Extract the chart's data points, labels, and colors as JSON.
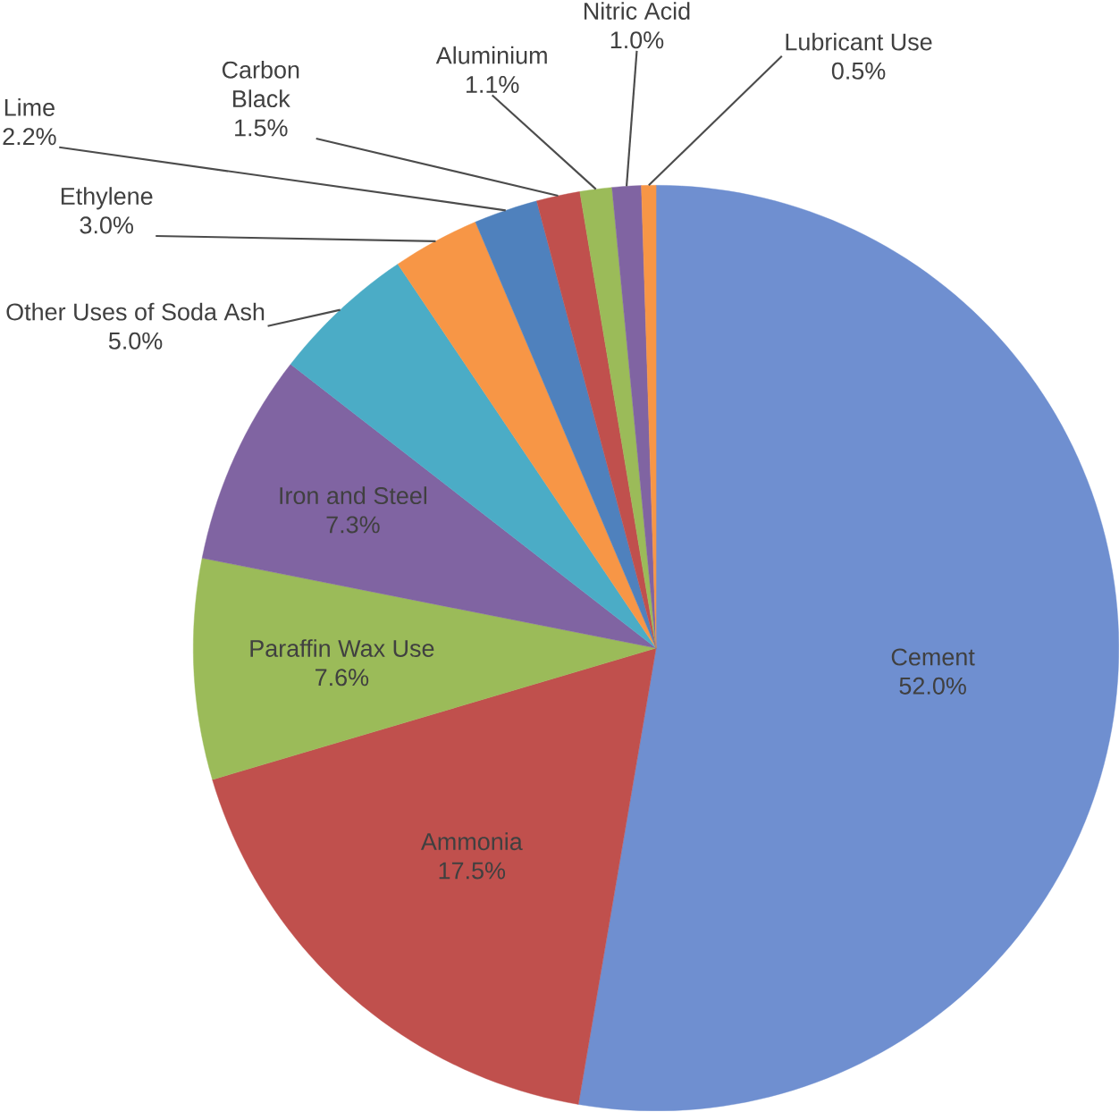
{
  "chart_data": {
    "type": "pie",
    "categories": [
      "Cement",
      "Ammonia",
      "Paraffin Wax Use",
      "Iron and Steel",
      "Other Uses of Soda Ash",
      "Ethylene",
      "Lime",
      "Carbon Black",
      "Aluminium",
      "Nitric Acid",
      "Lubricant Use"
    ],
    "values": [
      52.0,
      17.5,
      7.6,
      7.3,
      5.0,
      3.0,
      2.2,
      1.5,
      1.1,
      1.0,
      0.5
    ],
    "value_labels": [
      "52.0%",
      "17.5%",
      "7.6%",
      "7.3%",
      "5.0%",
      "3.0%",
      "2.2%",
      "1.5%",
      "1.1%",
      "1.0%",
      "0.5%"
    ],
    "colors": [
      "#6f8fd0",
      "#c0504d",
      "#9bbb59",
      "#8064a2",
      "#4bacc6",
      "#f79646",
      "#4f81bd",
      "#c0504d",
      "#9bbb59",
      "#8064a2",
      "#f79646"
    ]
  }
}
